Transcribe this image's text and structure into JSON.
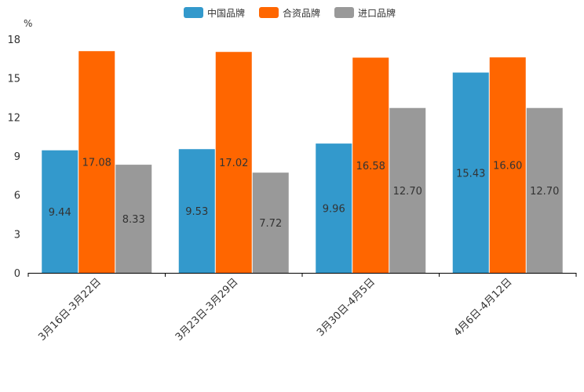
{
  "chart_data": {
    "type": "bar",
    "title": "",
    "xlabel": "",
    "ylabel": "%",
    "ylim": [
      0,
      18
    ],
    "yticks": [
      0,
      3,
      6,
      9,
      12,
      15,
      18
    ],
    "legend_position": "top-center",
    "categories": [
      "3月16日-3月22日",
      "3月23日-3月29日",
      "3月30日-4月5日",
      "4月6日-4月12日"
    ],
    "series": [
      {
        "name": "中国品牌",
        "color": "#3399cc",
        "values": [
          9.44,
          9.53,
          9.96,
          15.43
        ],
        "labels": [
          "9.44",
          "9.53",
          "9.96",
          "15.43"
        ]
      },
      {
        "name": "合资品牌",
        "color": "#ff6600",
        "values": [
          17.08,
          17.02,
          16.58,
          16.6
        ],
        "labels": [
          "17.08",
          "17.02",
          "16.58",
          "16.60"
        ]
      },
      {
        "name": "进口品牌",
        "color": "#999999",
        "values": [
          8.33,
          7.72,
          12.7,
          12.7
        ],
        "labels": [
          "8.33",
          "7.72",
          "12.70",
          "12.70"
        ]
      }
    ]
  }
}
